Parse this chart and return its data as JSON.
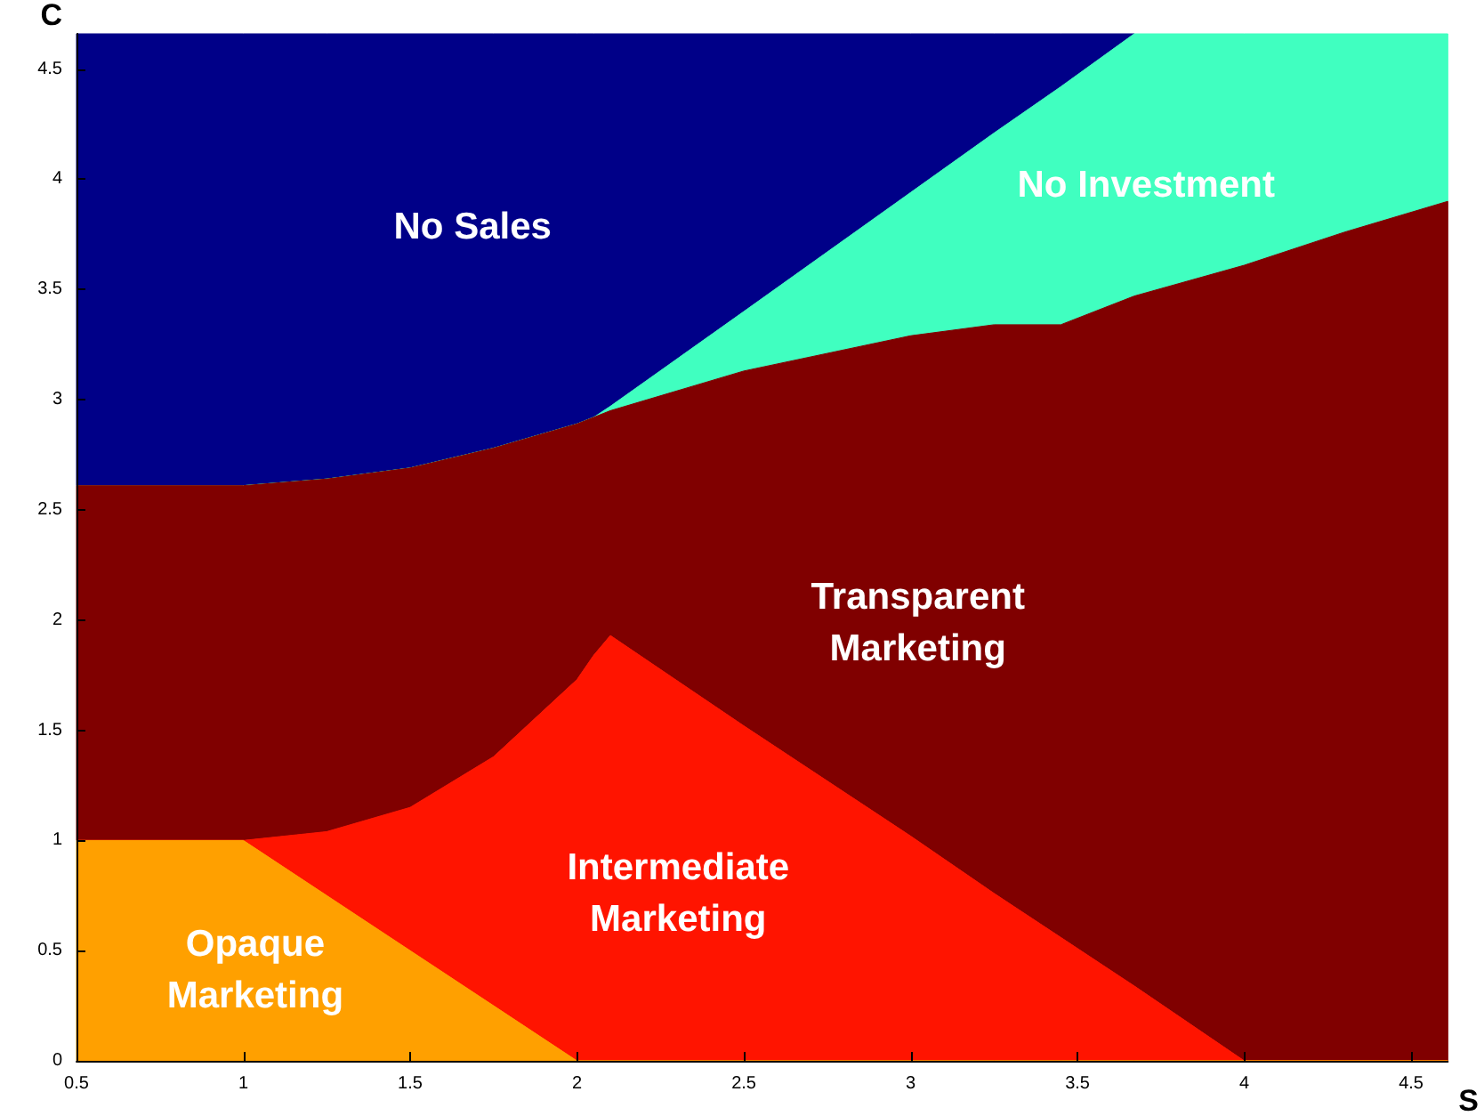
{
  "chart_data": {
    "type": "area",
    "stacked": true,
    "xlabel": "S",
    "ylabel": "C",
    "x": [
      0.5,
      1,
      1.25,
      1.5,
      1.75,
      2,
      2.05,
      2.1,
      2.5,
      3,
      3.25,
      3.45,
      3.67,
      4,
      4.3,
      4.61
    ],
    "series": [
      {
        "name": "Opaque\nMarketing",
        "color": "#ffa000",
        "values": [
          1,
          1,
          0.75,
          0.5,
          0.25,
          0,
          0,
          0,
          0,
          0,
          0,
          0,
          0,
          0,
          0,
          0
        ]
      },
      {
        "name": "Intermediate\nMarketing",
        "color": "#ff1400",
        "values": [
          0,
          0,
          0.29,
          0.65,
          1.13,
          1.73,
          1.84,
          1.93,
          1.52,
          1.02,
          0.76,
          0.56,
          0.34,
          0,
          0,
          0
        ]
      },
      {
        "name": "Transparent\nMarketing",
        "color": "#800000",
        "values": [
          1.61,
          1.61,
          1.6,
          1.54,
          1.4,
          1.16,
          1.08,
          1.02,
          1.61,
          2.27,
          2.58,
          2.78,
          3.13,
          3.61,
          3.76,
          3.9
        ]
      },
      {
        "name": "No Investment",
        "color": "#40ffc0",
        "values": [
          0,
          0,
          0,
          0,
          0,
          0,
          0,
          0.02,
          0.27,
          0.65,
          0.87,
          1.08,
          1.19,
          1.05,
          0.9,
          0.76
        ]
      },
      {
        "name": "No Sales",
        "color": "#000088",
        "values": [
          2.05,
          2.05,
          2.02,
          1.97,
          1.88,
          1.77,
          1.74,
          1.69,
          1.26,
          0.72,
          0.45,
          0.24,
          0,
          null,
          null,
          null
        ]
      }
    ],
    "xlim": [
      0.5,
      4.61
    ],
    "xticks": [
      0.5,
      1,
      1.5,
      2,
      2.5,
      3,
      3.5,
      4,
      4.5
    ],
    "ylim": [
      0,
      4.66
    ],
    "yticks": [
      0,
      0.5,
      1,
      1.5,
      2,
      2.5,
      3,
      3.5,
      4,
      4.5
    ],
    "grid": false
  }
}
